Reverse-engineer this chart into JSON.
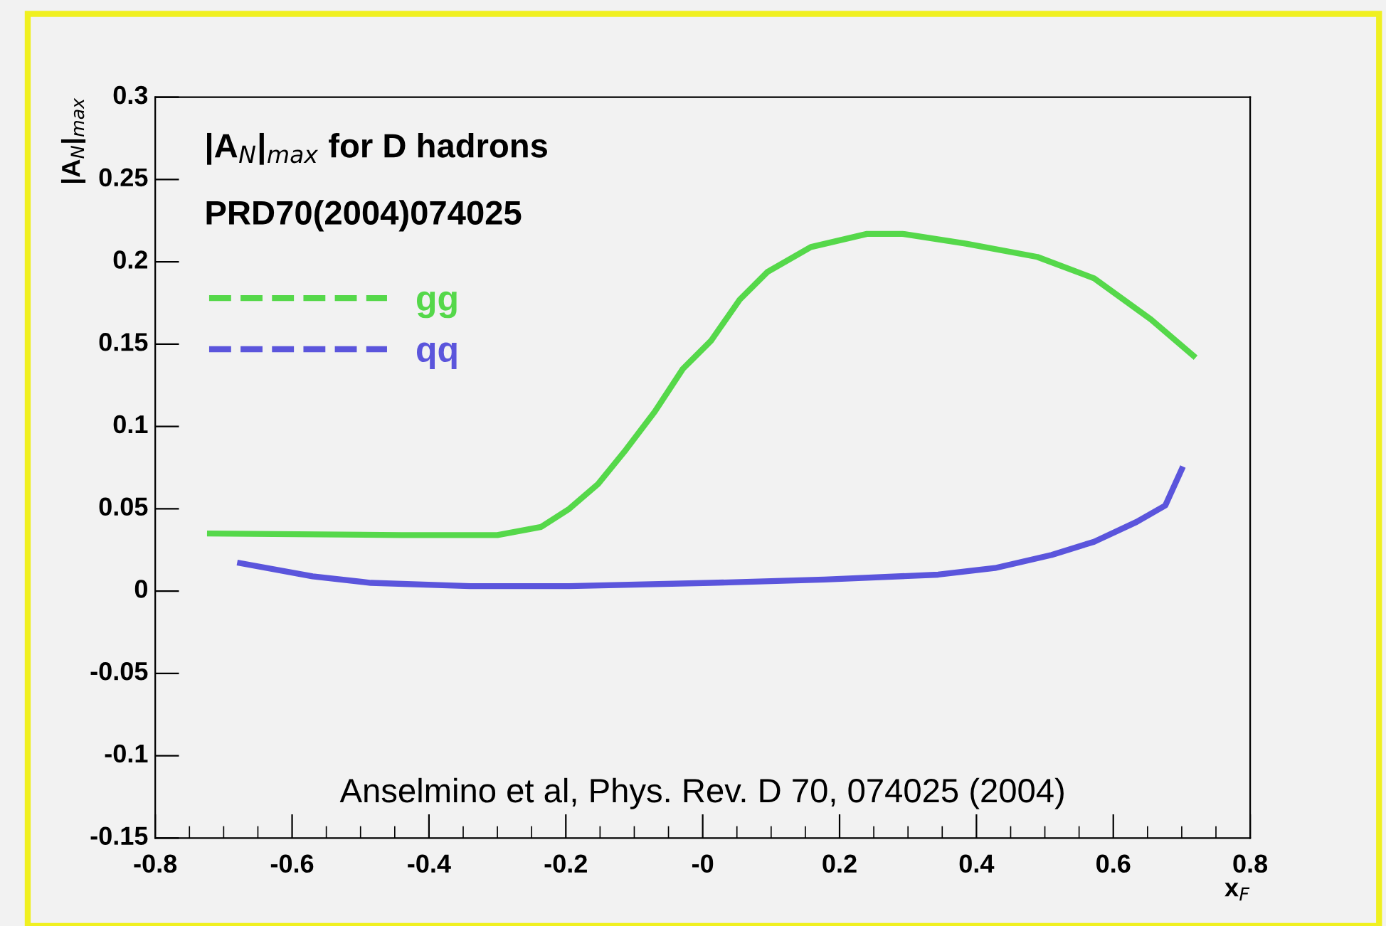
{
  "chart_data": {
    "type": "line",
    "xlabel": "x$_{F}$",
    "ylabel": "|A$_{N}$|$_{max}$",
    "annotations": [
      "|A$_{N}$|$_{max}$ for D hadrons",
      "PRD70(2004)074025",
      "Anselmino et al, Phys. Rev. D 70, 074025 (2004)"
    ],
    "series": [
      {
        "name": "gg",
        "color": "#55d84a",
        "x": [
          -0.72,
          -0.44,
          -0.3,
          -0.236,
          -0.195,
          -0.153,
          -0.112,
          -0.07,
          -0.029,
          0.012,
          0.054,
          0.095,
          0.158,
          0.24,
          0.292,
          0.385,
          0.489,
          0.572,
          0.655,
          0.717
        ],
        "values": [
          0.035,
          0.034,
          0.034,
          0.039,
          0.05,
          0.065,
          0.086,
          0.109,
          0.135,
          0.152,
          0.177,
          0.194,
          0.209,
          0.217,
          0.217,
          0.211,
          0.203,
          0.19,
          0.165,
          0.143
        ]
      },
      {
        "name": "qq",
        "color": "#5b55dc",
        "x": [
          -0.676,
          -0.57,
          -0.485,
          -0.34,
          -0.195,
          0.012,
          0.178,
          0.344,
          0.427,
          0.51,
          0.572,
          0.634,
          0.676,
          0.7
        ],
        "values": [
          0.017,
          0.009,
          0.005,
          0.003,
          0.003,
          0.005,
          0.007,
          0.01,
          0.014,
          0.022,
          0.03,
          0.042,
          0.052,
          0.074
        ]
      }
    ],
    "xlim": [
      -0.8,
      0.8
    ],
    "xticks": [
      -0.8,
      -0.6,
      -0.4,
      -0.2,
      {
        "value": 0,
        "label": "-0"
      },
      0.2,
      0.4,
      0.6,
      0.8
    ],
    "ylim": [
      -0.15,
      0.3
    ],
    "yticks": [
      -0.15,
      -0.1,
      -0.05,
      0,
      0.05,
      0.1,
      0.15,
      0.2,
      0.25,
      0.3
    ],
    "legend": "top left",
    "grid": false,
    "line_style": "solid",
    "marker": "none"
  }
}
